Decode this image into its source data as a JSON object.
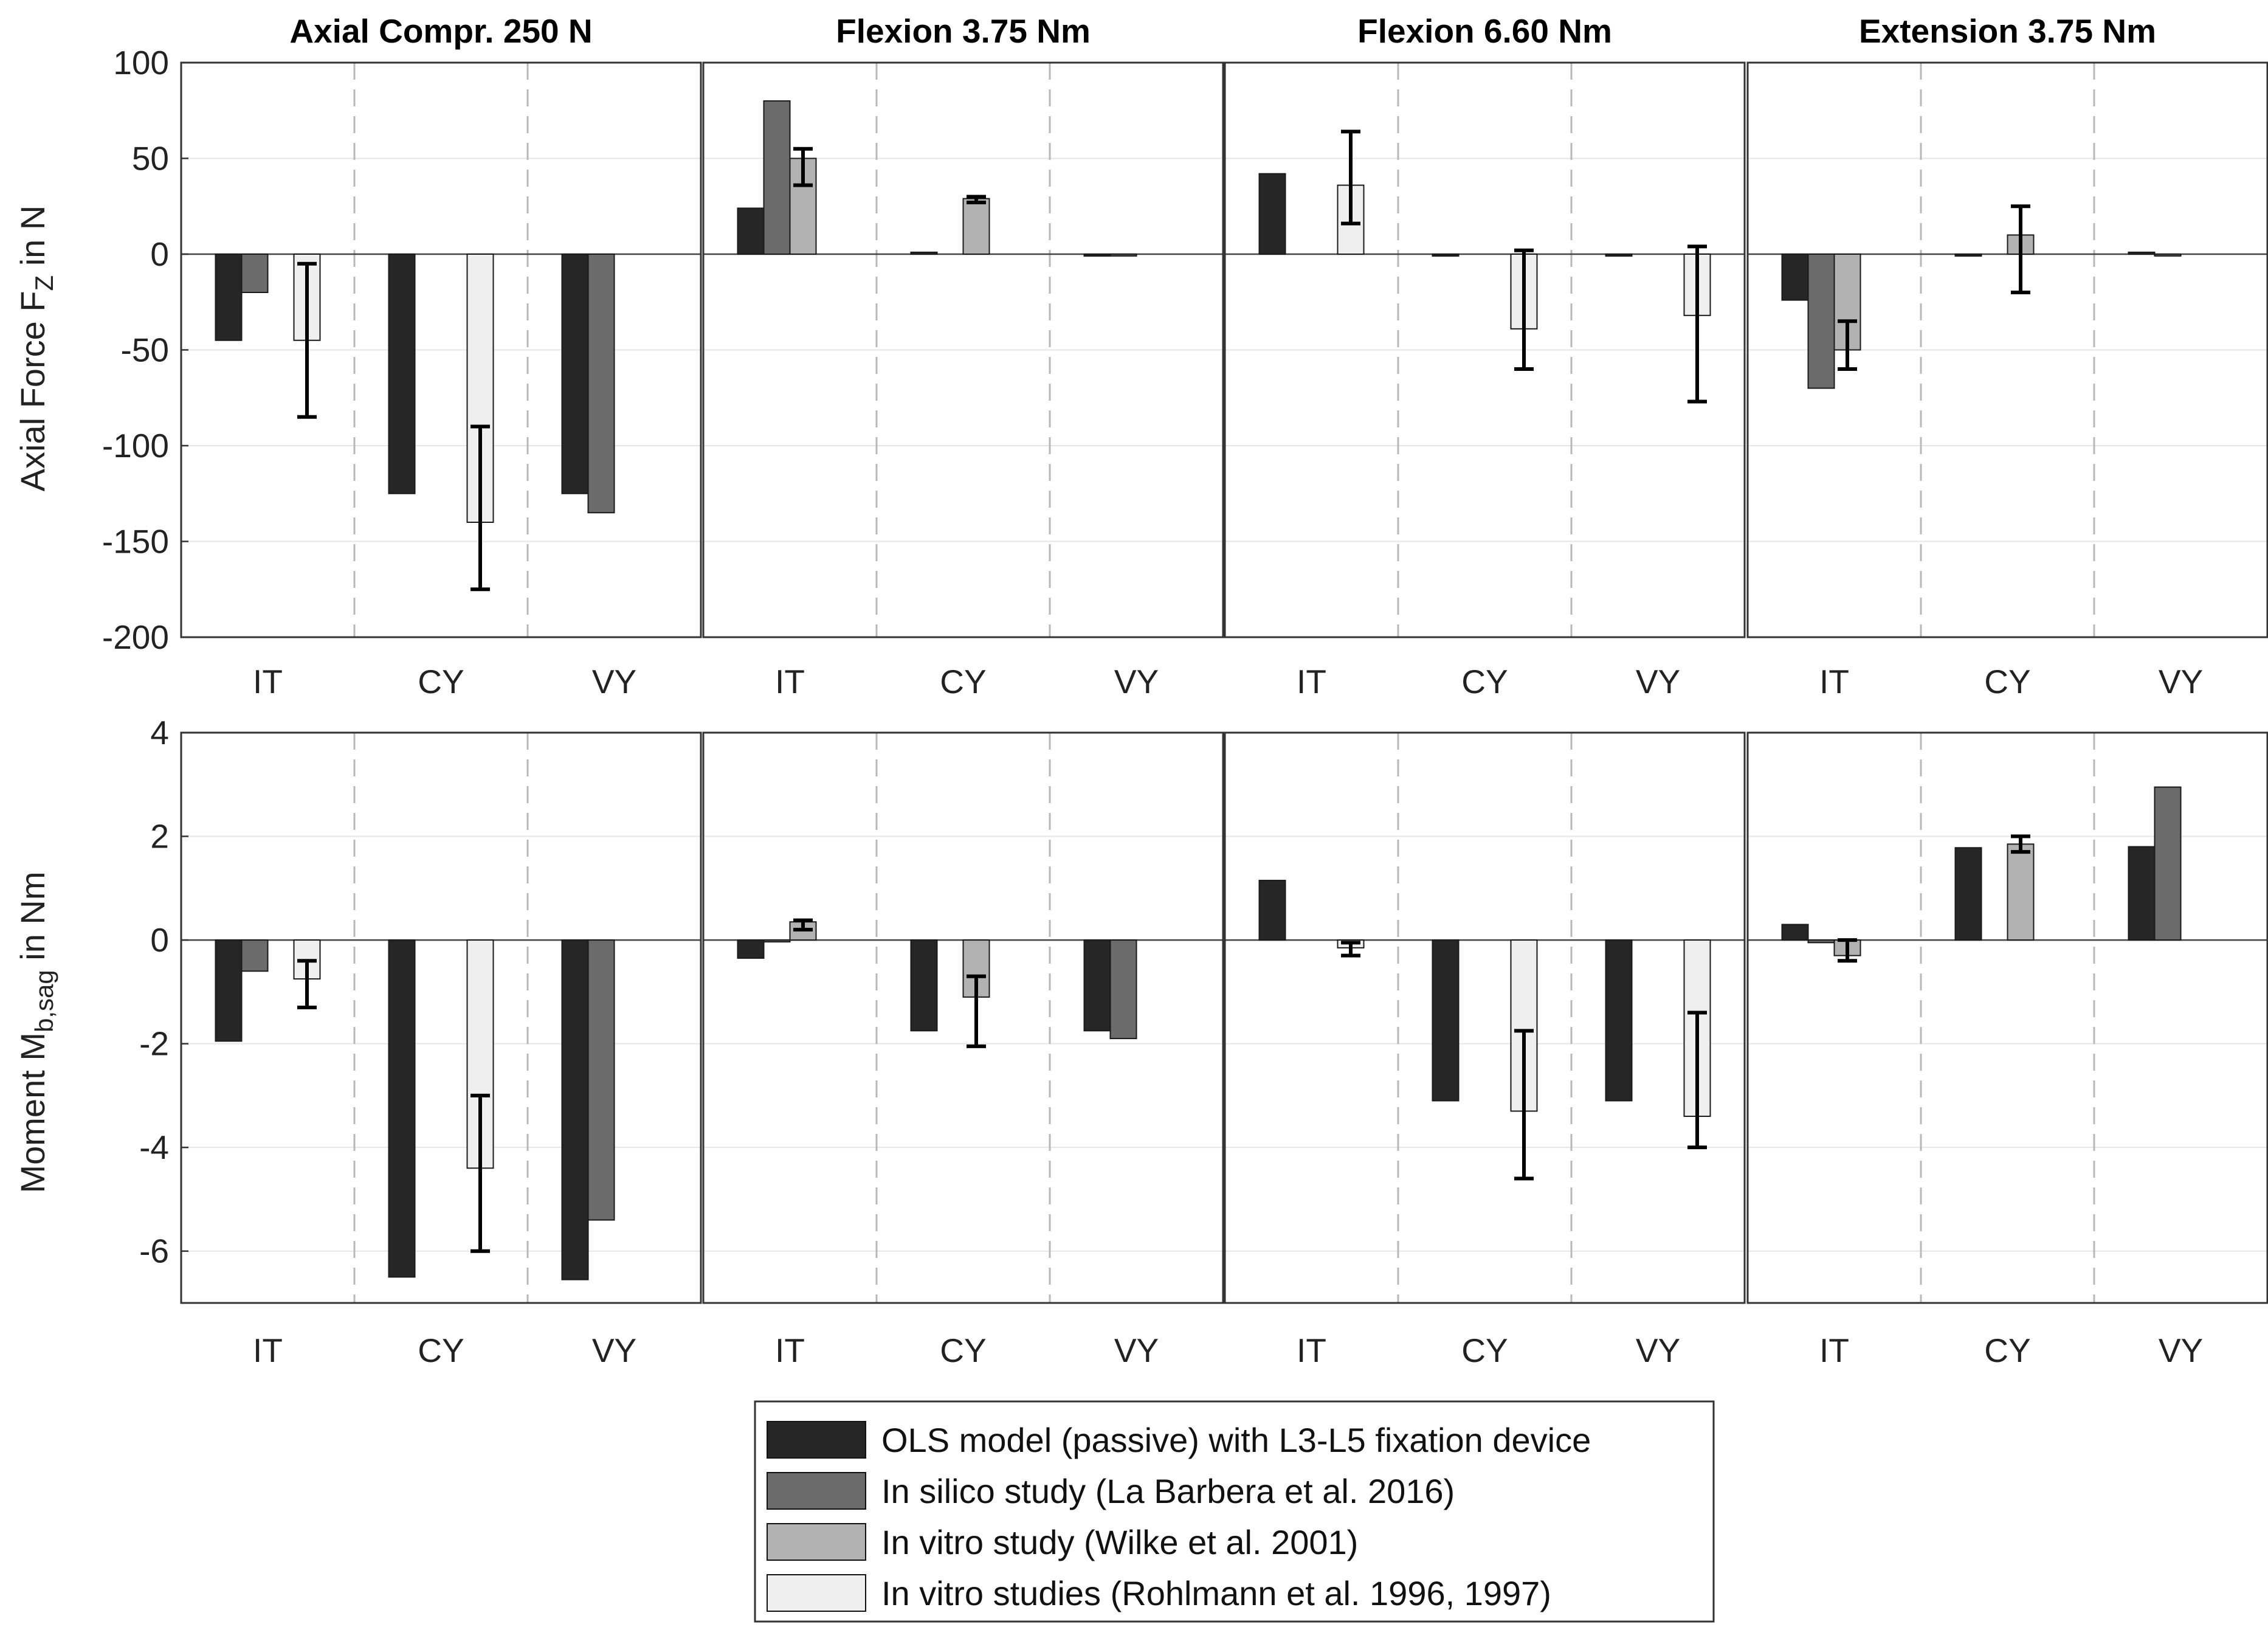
{
  "chart_data": {
    "type": "bar",
    "series": [
      {
        "name": "OLS model (passive) with L3-L5 fixation device",
        "color": "#262626"
      },
      {
        "name": "In silico study (La Barbera et al. 2016)",
        "color": "#6b6b6b"
      },
      {
        "name": "In vitro study (Wilke et al. 2001)",
        "color": "#b2b2b2"
      },
      {
        "name": "In vitro studies (Rohlmann et al. 1996, 1997)",
        "color": "#efefef"
      }
    ],
    "categories": [
      "IT",
      "CY",
      "VY"
    ],
    "rows": [
      {
        "ylabel_main": "Axial Force F",
        "ylabel_sub": "Z",
        "ylabel_tail": " in N",
        "ylim": [
          -200,
          100
        ],
        "yticks": [
          100,
          50,
          0,
          -50,
          -100,
          -150,
          -200
        ],
        "ytick_labels": [
          "100",
          "50",
          "0",
          "-50",
          "-100",
          "-150",
          "-200"
        ]
      },
      {
        "ylabel_main": "Moment M",
        "ylabel_sub": "b,sag",
        "ylabel_tail": " in Nm",
        "ylim": [
          -7,
          4
        ],
        "yticks": [
          4,
          2,
          0,
          -2,
          -4,
          -6
        ],
        "ytick_labels": [
          "4",
          "2",
          "0",
          "-2",
          "-4",
          "-6"
        ]
      }
    ],
    "panels": [
      {
        "title": "Axial Compr. 250 N",
        "force": [
          [
            -45,
            -20,
            null,
            -45
          ],
          [
            -125,
            null,
            null,
            -140
          ],
          [
            -125,
            -135,
            null,
            null
          ]
        ],
        "force_err": [
          [
            null,
            null,
            null,
            [
              -85,
              -5
            ]
          ],
          [
            null,
            null,
            null,
            [
              -175,
              -90
            ]
          ],
          [
            null,
            null,
            null,
            null
          ]
        ],
        "moment": [
          [
            -1.95,
            -0.6,
            null,
            -0.75
          ],
          [
            -6.5,
            null,
            null,
            -4.4
          ],
          [
            -6.55,
            -5.4,
            null,
            null
          ]
        ],
        "moment_err": [
          [
            null,
            null,
            null,
            [
              -1.3,
              -0.4
            ]
          ],
          [
            null,
            null,
            null,
            [
              -6.0,
              -3.0
            ]
          ],
          [
            null,
            null,
            null,
            null
          ]
        ]
      },
      {
        "title": "Flexion 3.75 Nm",
        "force": [
          [
            24,
            80,
            50,
            null
          ],
          [
            1,
            null,
            29,
            null
          ],
          [
            -1,
            0,
            null,
            null
          ]
        ],
        "force_err": [
          [
            null,
            null,
            [
              36,
              55
            ],
            null
          ],
          [
            null,
            null,
            [
              27,
              30
            ],
            null
          ],
          [
            null,
            null,
            null,
            null
          ]
        ],
        "moment": [
          [
            -0.35,
            -0.02,
            0.35,
            null
          ],
          [
            -1.75,
            null,
            -1.1,
            null
          ],
          [
            -1.75,
            -1.9,
            null,
            null
          ]
        ],
        "moment_err": [
          [
            null,
            null,
            [
              0.2,
              0.38
            ],
            null
          ],
          [
            null,
            null,
            [
              -2.05,
              -0.7
            ],
            null
          ],
          [
            null,
            null,
            null,
            null
          ]
        ]
      },
      {
        "title": "Flexion 6.60 Nm",
        "force": [
          [
            42,
            null,
            null,
            36
          ],
          [
            -1,
            null,
            null,
            -39
          ],
          [
            -1,
            null,
            null,
            -32
          ]
        ],
        "force_err": [
          [
            null,
            null,
            null,
            [
              16,
              64
            ]
          ],
          [
            null,
            null,
            null,
            [
              -60,
              2
            ]
          ],
          [
            null,
            null,
            null,
            [
              -77,
              4
            ]
          ]
        ],
        "moment": [
          [
            1.15,
            null,
            null,
            -0.15
          ],
          [
            -3.1,
            null,
            null,
            -3.3
          ],
          [
            -3.1,
            null,
            null,
            -3.4
          ]
        ],
        "moment_err": [
          [
            null,
            null,
            null,
            [
              -0.3,
              -0.05
            ]
          ],
          [
            null,
            null,
            null,
            [
              -4.6,
              -1.75
            ]
          ],
          [
            null,
            null,
            null,
            [
              -4.0,
              -1.4
            ]
          ]
        ]
      },
      {
        "title": "Extension 3.75 Nm",
        "force": [
          [
            -24,
            -70,
            -50,
            null
          ],
          [
            -1,
            null,
            10,
            null
          ],
          [
            1,
            0,
            null,
            null
          ]
        ],
        "force_err": [
          [
            null,
            null,
            [
              -60,
              -35
            ],
            null
          ],
          [
            null,
            null,
            [
              -20,
              25
            ],
            null
          ],
          [
            null,
            null,
            null,
            null
          ]
        ],
        "moment": [
          [
            0.3,
            -0.05,
            -0.3,
            null
          ],
          [
            1.78,
            null,
            1.85,
            null
          ],
          [
            1.8,
            2.95,
            null,
            null
          ]
        ],
        "moment_err": [
          [
            null,
            null,
            [
              -0.4,
              0.0
            ],
            null
          ],
          [
            null,
            null,
            [
              1.7,
              2.0
            ],
            null
          ],
          [
            null,
            null,
            null,
            null
          ]
        ]
      }
    ]
  }
}
